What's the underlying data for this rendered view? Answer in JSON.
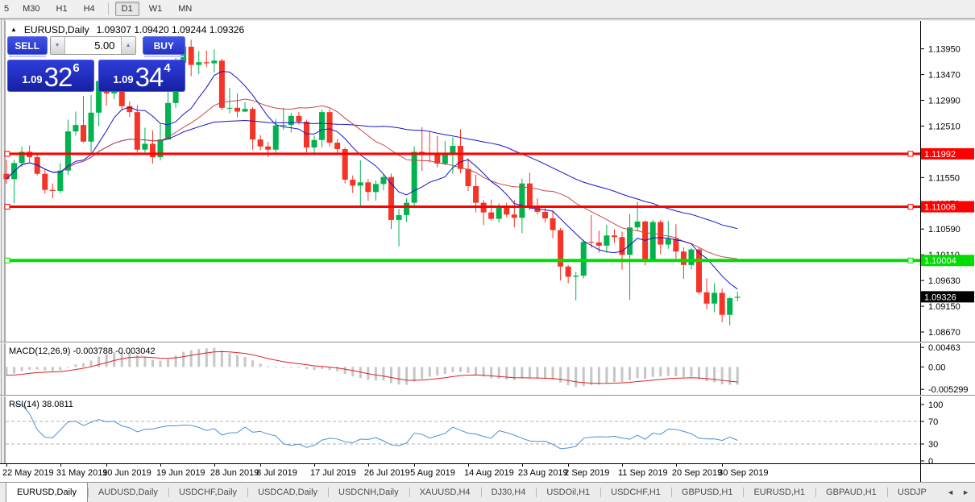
{
  "toolbar": {
    "timeframes": [
      "5",
      "M30",
      "H1",
      "H4",
      "D1",
      "W1",
      "MN"
    ],
    "active": "D1",
    "separator_before": "D1"
  },
  "chart": {
    "title": "EURUSD,Daily",
    "ohlc_text": "1.09307 1.09420 1.09244 1.09326",
    "trade_panel": {
      "sell_label": "SELL",
      "buy_label": "BUY",
      "volume": "5.00",
      "sell_price_small": "1.09",
      "sell_price_big": "32",
      "sell_price_sup": "6",
      "buy_price_small": "1.09",
      "buy_price_big": "34",
      "buy_price_sup": "4"
    }
  },
  "colors": {
    "bull": "#00b34e",
    "bear": "#f43426",
    "level_red": "#ff0000",
    "level_green": "#00dd00",
    "ma_blue": "#1515c8",
    "ma_red": "#c84848",
    "macd_bar": "#c6c6c6",
    "macd_signal": "#e02020",
    "rsi_line": "#4a90d9",
    "current_badge": "#000000",
    "panel_blue": "#2333c6"
  },
  "chart_data": {
    "type": "candlestick",
    "symbol": "EURUSD",
    "period": "Daily",
    "current_ohlc": {
      "open": "1.09307",
      "high": "1.09420",
      "low": "1.09244",
      "close": "1.09326"
    },
    "ylim": [
      1.0849,
      1.1447
    ],
    "y_ticks": [
      "1.13950",
      "1.13470",
      "1.12990",
      "1.12510",
      "1.12030",
      "1.11550",
      "1.11070",
      "1.10590",
      "1.10110",
      "1.09630",
      "1.09150",
      "1.08670"
    ],
    "x_labels": [
      {
        "text": "22 May 2019",
        "index": 0
      },
      {
        "text": "31 May 2019",
        "index": 7
      },
      {
        "text": "10 Jun 2019",
        "index": 13
      },
      {
        "text": "19 Jun 2019",
        "index": 20
      },
      {
        "text": "28 Jun 2019",
        "index": 27
      },
      {
        "text": "8 Jul 2019",
        "index": 33
      },
      {
        "text": "17 Jul 2019",
        "index": 40
      },
      {
        "text": "26 Jul 2019",
        "index": 47
      },
      {
        "text": "5 Aug 2019",
        "index": 53
      },
      {
        "text": "14 Aug 2019",
        "index": 60
      },
      {
        "text": "23 Aug 2019",
        "index": 67
      },
      {
        "text": "2 Sep 2019",
        "index": 73
      },
      {
        "text": "11 Sep 2019",
        "index": 80
      },
      {
        "text": "20 Sep 2019",
        "index": 87
      },
      {
        "text": "30 Sep 2019",
        "index": 93
      }
    ],
    "candles": [
      [
        1.1162,
        1.1188,
        1.1143,
        1.1152
      ],
      [
        1.1152,
        1.1188,
        1.1107,
        1.1182
      ],
      [
        1.1182,
        1.1213,
        1.1175,
        1.1203
      ],
      [
        1.1203,
        1.1215,
        1.1184,
        1.1193
      ],
      [
        1.1193,
        1.12,
        1.1159,
        1.1162
      ],
      [
        1.1162,
        1.1172,
        1.1125,
        1.1132
      ],
      [
        1.1132,
        1.1144,
        1.1116,
        1.113
      ],
      [
        1.113,
        1.1182,
        1.1126,
        1.1168
      ],
      [
        1.1168,
        1.1263,
        1.116,
        1.1241
      ],
      [
        1.1241,
        1.1278,
        1.1233,
        1.1253
      ],
      [
        1.1253,
        1.1307,
        1.122,
        1.1222
      ],
      [
        1.1222,
        1.1309,
        1.1201,
        1.1276
      ],
      [
        1.1276,
        1.1348,
        1.1251,
        1.1335
      ],
      [
        1.133,
        1.1336,
        1.1289,
        1.1312
      ],
      [
        1.1312,
        1.1338,
        1.1301,
        1.1326
      ],
      [
        1.1326,
        1.1344,
        1.128,
        1.1288
      ],
      [
        1.1288,
        1.1297,
        1.1268,
        1.1277
      ],
      [
        1.1277,
        1.129,
        1.1202,
        1.1207
      ],
      [
        1.1207,
        1.1248,
        1.1202,
        1.1218
      ],
      [
        1.1218,
        1.1243,
        1.1181,
        1.1193
      ],
      [
        1.1193,
        1.1255,
        1.1187,
        1.1226
      ],
      [
        1.1226,
        1.1317,
        1.1226,
        1.1294
      ],
      [
        1.1294,
        1.1378,
        1.1285,
        1.1369
      ],
      [
        1.1369,
        1.1406,
        1.1362,
        1.1399
      ],
      [
        1.1399,
        1.1412,
        1.1344,
        1.1365
      ],
      [
        1.1365,
        1.1391,
        1.1348,
        1.137
      ],
      [
        1.137,
        1.1392,
        1.1361,
        1.1368
      ],
      [
        1.1368,
        1.1394,
        1.1351,
        1.1373
      ],
      [
        1.1373,
        1.1377,
        1.1281,
        1.1285
      ],
      [
        1.1285,
        1.1322,
        1.1275,
        1.1285
      ],
      [
        1.1285,
        1.1312,
        1.1268,
        1.1278
      ],
      [
        1.1278,
        1.1295,
        1.1277,
        1.1283
      ],
      [
        1.1283,
        1.1287,
        1.1207,
        1.1226
      ],
      [
        1.1226,
        1.1234,
        1.1206,
        1.1213
      ],
      [
        1.1213,
        1.1221,
        1.1193,
        1.1207
      ],
      [
        1.1207,
        1.1264,
        1.1202,
        1.1252
      ],
      [
        1.1252,
        1.1285,
        1.1244,
        1.1253
      ],
      [
        1.1253,
        1.1275,
        1.1239,
        1.127
      ],
      [
        1.127,
        1.1277,
        1.1254,
        1.1259
      ],
      [
        1.1259,
        1.1263,
        1.1202,
        1.1211
      ],
      [
        1.1211,
        1.1233,
        1.1199,
        1.1225
      ],
      [
        1.1225,
        1.1282,
        1.1211,
        1.1277
      ],
      [
        1.1277,
        1.1283,
        1.1213,
        1.122
      ],
      [
        1.122,
        1.1227,
        1.1198,
        1.1208
      ],
      [
        1.1208,
        1.1211,
        1.1144,
        1.1151
      ],
      [
        1.1151,
        1.1159,
        1.1126,
        1.114
      ],
      [
        1.114,
        1.1187,
        1.1101,
        1.1146
      ],
      [
        1.1146,
        1.1152,
        1.1112,
        1.1128
      ],
      [
        1.1128,
        1.115,
        1.1112,
        1.1143
      ],
      [
        1.1143,
        1.1162,
        1.1131,
        1.1156
      ],
      [
        1.1156,
        1.1162,
        1.1059,
        1.1076
      ],
      [
        1.1076,
        1.1096,
        1.1027,
        1.1085
      ],
      [
        1.1085,
        1.1116,
        1.1072,
        1.1108
      ],
      [
        1.1108,
        1.1213,
        1.1101,
        1.1203
      ],
      [
        1.1203,
        1.1249,
        1.1167,
        1.12
      ],
      [
        1.12,
        1.1242,
        1.1183,
        1.1199
      ],
      [
        1.1199,
        1.1233,
        1.1174,
        1.1181
      ],
      [
        1.1181,
        1.1223,
        1.1178,
        1.1199
      ],
      [
        1.1199,
        1.123,
        1.1162,
        1.1214
      ],
      [
        1.1214,
        1.1245,
        1.1163,
        1.1171
      ],
      [
        1.1171,
        1.1191,
        1.113,
        1.1139
      ],
      [
        1.1139,
        1.116,
        1.109,
        1.1108
      ],
      [
        1.1108,
        1.1113,
        1.1066,
        1.109
      ],
      [
        1.109,
        1.1114,
        1.1075,
        1.1078
      ],
      [
        1.1078,
        1.1107,
        1.1071,
        1.11
      ],
      [
        1.11,
        1.1108,
        1.1081,
        1.1086
      ],
      [
        1.1086,
        1.1113,
        1.1062,
        1.108
      ],
      [
        1.108,
        1.1153,
        1.1051,
        1.1144
      ],
      [
        1.1144,
        1.1164,
        1.1094,
        1.1101
      ],
      [
        1.1101,
        1.1116,
        1.1086,
        1.1091
      ],
      [
        1.1091,
        1.1098,
        1.1071,
        1.1079
      ],
      [
        1.1079,
        1.1094,
        1.1042,
        1.1057
      ],
      [
        1.1057,
        1.1061,
        1.0963,
        1.0989
      ],
      [
        1.0989,
        1.0992,
        1.0958,
        1.097
      ],
      [
        1.097,
        1.0979,
        1.0926,
        1.0972
      ],
      [
        1.0972,
        1.1039,
        1.0967,
        1.1035
      ],
      [
        1.1035,
        1.1085,
        1.1024,
        1.1034
      ],
      [
        1.1034,
        1.1056,
        1.1015,
        1.1028
      ],
      [
        1.1028,
        1.1067,
        1.1015,
        1.1047
      ],
      [
        1.1047,
        1.1059,
        1.1033,
        1.1044
      ],
      [
        1.1044,
        1.1054,
        1.0983,
        1.1011
      ],
      [
        1.1011,
        1.1087,
        1.0927,
        1.1062
      ],
      [
        1.1062,
        1.111,
        1.1055,
        1.1073
      ],
      [
        1.1073,
        1.1075,
        1.0991,
        1.1003
      ],
      [
        1.1003,
        1.1076,
        1.0998,
        1.1072
      ],
      [
        1.1072,
        1.1076,
        1.1012,
        1.103
      ],
      [
        1.103,
        1.1074,
        1.1022,
        1.1041
      ],
      [
        1.1041,
        1.1068,
        1.1004,
        1.1017
      ],
      [
        1.1017,
        1.1025,
        1.0966,
        1.0992
      ],
      [
        1.0992,
        1.1024,
        1.0984,
        1.1021
      ],
      [
        1.1021,
        1.1024,
        1.0937,
        1.0941
      ],
      [
        1.0941,
        1.0967,
        1.0909,
        1.092
      ],
      [
        1.092,
        1.0958,
        1.0904,
        1.094
      ],
      [
        1.094,
        1.0948,
        1.0885,
        1.0899
      ],
      [
        1.0899,
        1.0932,
        1.0879,
        1.093
      ],
      [
        1.09307,
        1.0942,
        1.09244,
        1.09326
      ]
    ],
    "overlays": [
      {
        "type": "sma",
        "period": 8,
        "color": "#1515c8"
      },
      {
        "type": "sma",
        "period": 21,
        "color": "#c84848"
      },
      {
        "type": "sma",
        "period": 44,
        "color": "#1515c8"
      }
    ],
    "levels": [
      {
        "value": 1.11992,
        "label": "1.11992",
        "color": "#ff0000",
        "width": 3
      },
      {
        "value": 1.11006,
        "label": "1.11006",
        "color": "#ff0000",
        "width": 3
      },
      {
        "value": 1.10004,
        "label": "1.10004",
        "color": "#00dd00",
        "width": 4
      }
    ],
    "current_price": {
      "value": 1.09326,
      "label": "1.09326",
      "color": "#000000"
    },
    "indicators": [
      {
        "name": "MACD",
        "label": "MACD(12,26,9) -0.003788 -0.003042",
        "fast": 12,
        "slow": 26,
        "signal": 9,
        "current_values": [
          "-0.003788",
          "-0.003042"
        ],
        "ylim": [
          -0.0066,
          0.0056
        ],
        "y_ticks": [
          {
            "label": "0.00463",
            "value": 0.00463
          },
          {
            "label": "0.00",
            "value": 0
          },
          {
            "label": "-0.005299",
            "value": -0.005299
          }
        ],
        "bar_color": "#c6c6c6",
        "signal_color": "#e02020"
      },
      {
        "name": "RSI",
        "label": "RSI(14) 38.0811",
        "period": 14,
        "current_value": "38.0811",
        "ylim": [
          0,
          100
        ],
        "y_ticks": [
          {
            "label": "100",
            "value": 100
          },
          {
            "label": "70",
            "value": 70
          },
          {
            "label": "30",
            "value": 30
          },
          {
            "label": "0",
            "value": 0
          }
        ],
        "levels": [
          70,
          30
        ],
        "line_color": "#4a90d9"
      }
    ]
  },
  "tabs": {
    "items": [
      "EURUSD,Daily",
      "AUDUSD,Daily",
      "USDCHF,Daily",
      "USDCAD,Daily",
      "USDCNH,Daily",
      "XAUUSD,H4",
      "DJ30,H4",
      "USDOil,H1",
      "USDCHF,H1",
      "GBPUSD,H1",
      "EURUSD,H1",
      "GBPAUD,H1",
      "USDJP"
    ],
    "active_index": 0,
    "nav_left": "◄",
    "nav_right": "►"
  }
}
